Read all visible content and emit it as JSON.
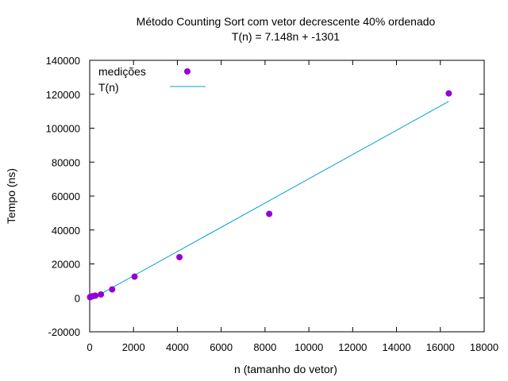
{
  "chart_data": {
    "type": "scatter",
    "title": "Método Counting Sort com vetor decrescente 40% ordenado",
    "subtitle": "T(n) = 7.148n + -1301",
    "xlabel": "n (tamanho do vetor)",
    "ylabel": "Tempo (ns)",
    "xlim": [
      0,
      18000
    ],
    "ylim": [
      -20000,
      140000
    ],
    "xticks": [
      0,
      2000,
      4000,
      6000,
      8000,
      10000,
      12000,
      14000,
      16000,
      18000
    ],
    "yticks": [
      -20000,
      0,
      20000,
      40000,
      60000,
      80000,
      100000,
      120000,
      140000
    ],
    "xtick_labels": [
      "0",
      "2000",
      "4000",
      "6000",
      "8000",
      "10000",
      "12000",
      "14000",
      "16000",
      "18000"
    ],
    "ytick_labels": [
      "-20000",
      "0",
      "20000",
      "40000",
      "60000",
      "80000",
      "100000",
      "120000",
      "140000"
    ],
    "grid": false,
    "legend_position": "top-left",
    "series": [
      {
        "name": "medições",
        "kind": "points",
        "color": "#9400d3",
        "points": [
          {
            "x": 16,
            "y": 400
          },
          {
            "x": 32,
            "y": 600
          },
          {
            "x": 64,
            "y": 700
          },
          {
            "x": 128,
            "y": 1000
          },
          {
            "x": 256,
            "y": 1300
          },
          {
            "x": 512,
            "y": 2000
          },
          {
            "x": 1024,
            "y": 5000
          },
          {
            "x": 2048,
            "y": 12500
          },
          {
            "x": 4096,
            "y": 24000
          },
          {
            "x": 8192,
            "y": 49500
          },
          {
            "x": 16384,
            "y": 120500
          }
        ]
      },
      {
        "name": "T(n)",
        "kind": "line",
        "color": "#009ee0",
        "slope": 7.148,
        "intercept": -1301,
        "x_range": [
          0,
          16384
        ]
      }
    ]
  }
}
